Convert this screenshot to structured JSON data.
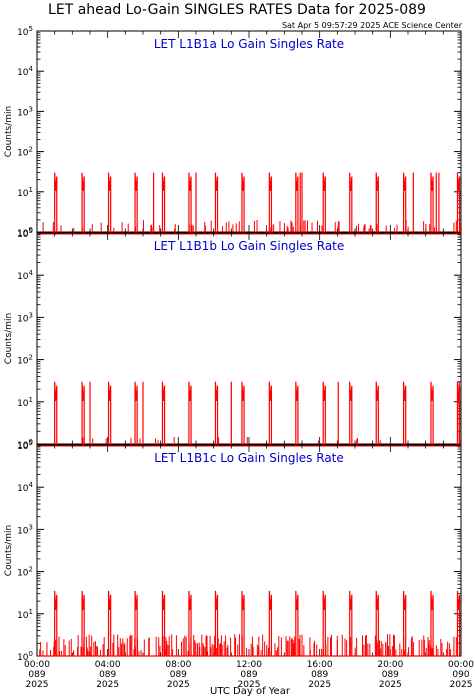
{
  "page": {
    "title": "LET ahead Lo-Gain SINGLES RATES Data for 2025-089",
    "timestamp": "Sat Apr  5 09:57:29 2025 ACE Science Center",
    "xlabel": "UTC Day of Year"
  },
  "chart_data": [
    {
      "type": "line",
      "panel_title": "LET L1B1a Lo Gain Singles Rate",
      "ylabel": "Counts/min",
      "yscale": "log",
      "ylim": [
        1,
        100000
      ],
      "xlim": [
        0,
        24
      ],
      "y_ticks": [
        "10^0",
        "10^1",
        "10^2",
        "10^3",
        "10^4",
        "10^5"
      ],
      "series": [
        {
          "color": "#ff0000",
          "baseline": 0.9,
          "spike_peak": 30,
          "spike_dur_h": 0.12,
          "spike_x": [
            1.0,
            2.55,
            4.05,
            5.55,
            7.1,
            8.6,
            10.1,
            11.6,
            13.15,
            14.65,
            16.2,
            17.7,
            19.2,
            20.75,
            22.3,
            23.8
          ],
          "extra_spike_x": [
            6.6,
            9.0,
            14.9,
            15.0,
            21.3,
            22.6,
            22.75
          ],
          "noise_level": 1.7,
          "noise_frac": 0.18
        }
      ]
    },
    {
      "type": "line",
      "panel_title": "LET L1B1b Lo Gain Singles Rate",
      "ylabel": "Counts/min",
      "yscale": "log",
      "ylim": [
        1,
        100000
      ],
      "xlim": [
        0,
        24
      ],
      "y_ticks": [
        "10^0",
        "10^1",
        "10^2",
        "10^3",
        "10^4",
        "10^5"
      ],
      "series": [
        {
          "color": "#ff0000",
          "baseline": 0.9,
          "spike_peak": 30,
          "spike_dur_h": 0.12,
          "spike_x": [
            1.0,
            2.55,
            4.05,
            5.55,
            7.1,
            8.6,
            10.1,
            11.6,
            13.15,
            14.65,
            16.2,
            17.7,
            19.2,
            20.75,
            22.3,
            23.8
          ],
          "extra_spike_x": [
            3.0,
            6.0,
            11.0,
            17.05,
            23.9
          ],
          "noise_level": 1.2,
          "noise_frac": 0.03
        }
      ]
    },
    {
      "type": "line",
      "panel_title": "LET L1B1c Lo Gain Singles Rate",
      "ylabel": "Counts/min",
      "yscale": "log",
      "ylim": [
        1,
        100000
      ],
      "xlim": [
        0,
        24
      ],
      "y_ticks": [
        "10^0",
        "10^1",
        "10^2",
        "10^3",
        "10^4",
        "10^5"
      ],
      "series": [
        {
          "color": "#ff0000",
          "baseline": 1.0,
          "spike_peak": 35,
          "spike_dur_h": 0.12,
          "spike_x": [
            1.0,
            2.55,
            4.05,
            5.55,
            7.1,
            8.6,
            10.1,
            11.6,
            13.15,
            14.65,
            16.2,
            17.7,
            19.2,
            20.75,
            22.3,
            23.8
          ],
          "extra_spike_x": [],
          "noise_level": 3.0,
          "noise_frac": 0.45
        }
      ]
    }
  ],
  "x_ticks": [
    {
      "hour": 0,
      "time": "00:00",
      "doy": "089",
      "year": "2025"
    },
    {
      "hour": 4,
      "time": "04:00",
      "doy": "089",
      "year": "2025"
    },
    {
      "hour": 8,
      "time": "08:00",
      "doy": "089",
      "year": "2025"
    },
    {
      "hour": 12,
      "time": "12:00",
      "doy": "089",
      "year": "2025"
    },
    {
      "hour": 16,
      "time": "16:00",
      "doy": "089",
      "year": "2025"
    },
    {
      "hour": 20,
      "time": "20:00",
      "doy": "089",
      "year": "2025"
    },
    {
      "hour": 24,
      "time": "00:00",
      "doy": "090",
      "year": "2025"
    }
  ],
  "colors": {
    "title_text": "#000000",
    "panel_title": "#0000cc",
    "data": "#ff0000",
    "axes": "#000000"
  }
}
